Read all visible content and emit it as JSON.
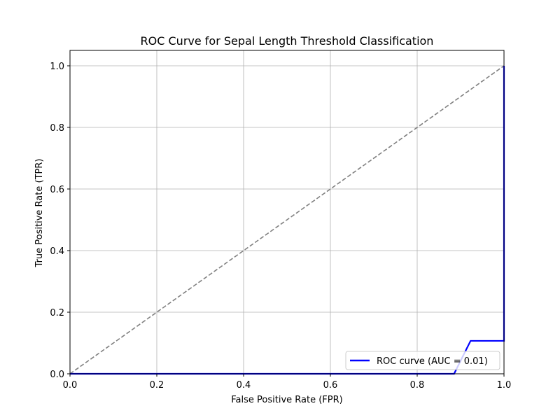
{
  "chart_data": {
    "type": "line",
    "title": "ROC Curve for Sepal Length Threshold Classification",
    "xlabel": "False Positive Rate (FPR)",
    "ylabel": "True Positive Rate (TPR)",
    "xlim": [
      0.0,
      1.0
    ],
    "ylim": [
      0.0,
      1.05
    ],
    "xticks": [
      "0.0",
      "0.2",
      "0.4",
      "0.6",
      "0.8",
      "1.0"
    ],
    "yticks": [
      "0.0",
      "0.2",
      "0.4",
      "0.6",
      "0.8",
      "1.0"
    ],
    "grid": true,
    "legend_position": "lower-right",
    "series": [
      {
        "name": "ROC curve (AUC = 0.01)",
        "color": "#0000ff",
        "style": "solid",
        "x": [
          0.0,
          0.885,
          0.923,
          1.0,
          1.0
        ],
        "y": [
          0.0,
          0.0,
          0.107,
          0.107,
          1.0
        ]
      },
      {
        "color": "#808080",
        "style": "dashed",
        "x": [
          0.0,
          1.0
        ],
        "y": [
          0.0,
          1.0
        ]
      }
    ]
  }
}
